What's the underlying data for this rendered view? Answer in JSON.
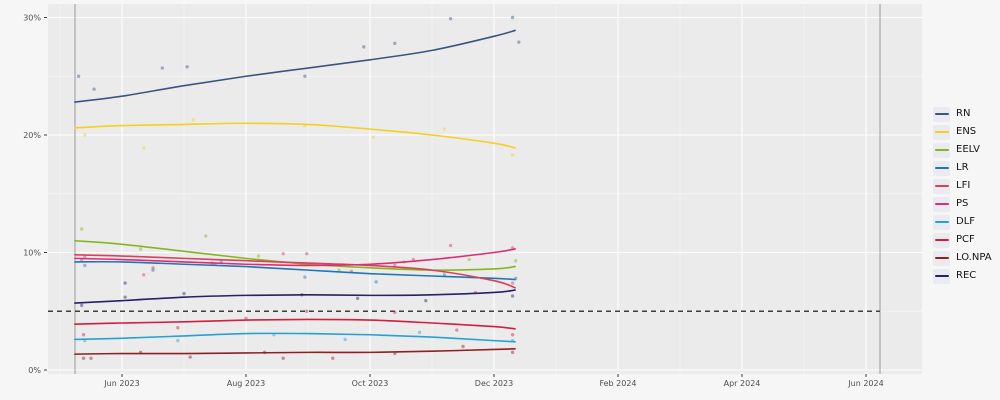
{
  "chart_data": {
    "type": "line",
    "title": "",
    "description": "Polling trends with individual poll results (scatter) per party, June 2023 - June 2024",
    "grid": "on",
    "legend_position": "right",
    "panel_color": "#ebebeb",
    "gridline_color": "#ffffff",
    "x_axis": {
      "unit": "months from Jun 2023",
      "ticks": [
        {
          "m": 0,
          "label": "Jun 2023"
        },
        {
          "m": 2,
          "label": "Aug 2023"
        },
        {
          "m": 4,
          "label": "Oct 2023"
        },
        {
          "m": 6,
          "label": "Dec 2023"
        },
        {
          "m": 8,
          "label": "Feb 2024"
        },
        {
          "m": 10,
          "label": "Apr 2024"
        },
        {
          "m": 12,
          "label": "Jun 2024"
        }
      ],
      "minor_ticks_m": [
        -1,
        1,
        3,
        5,
        7,
        9,
        11,
        13
      ]
    },
    "y_axis": {
      "range": [
        0,
        30
      ],
      "ticks": [
        {
          "v": 0,
          "label": "0%"
        },
        {
          "v": 10,
          "label": "10%"
        },
        {
          "v": 20,
          "label": "20%"
        },
        {
          "v": 30,
          "label": "30%"
        }
      ],
      "minor_ticks_v": [
        5,
        15,
        25
      ]
    },
    "threshold_line": {
      "value": 5,
      "style": "dashed",
      "color": "#3f3f3f",
      "extends_to_m": 12.226
    },
    "reference_vlines": [
      {
        "m": -0.758,
        "color": "#9b9b9b"
      },
      {
        "m": 12.226,
        "color": "#9b9b9b"
      }
    ],
    "trend_months": [
      -0.76,
      0,
      1,
      2,
      3,
      4,
      5,
      6,
      6.34
    ],
    "series": [
      {
        "name": "RN",
        "key": "rn",
        "color": "#3a567f",
        "trend": [
          22.8,
          23.3,
          24.2,
          25.0,
          25.7,
          26.4,
          27.2,
          28.4,
          28.9
        ],
        "points": [
          [
            -0.7,
            25.0
          ],
          [
            -0.45,
            23.9
          ],
          [
            0.65,
            25.7
          ],
          [
            1.05,
            25.8
          ],
          [
            2.95,
            25.0
          ],
          [
            3.9,
            27.5
          ],
          [
            4.4,
            27.8
          ],
          [
            5.3,
            29.9
          ],
          [
            6.3,
            30.0
          ],
          [
            6.4,
            27.9
          ]
        ]
      },
      {
        "name": "ENS",
        "key": "ens",
        "color": "#f5d020",
        "trend": [
          20.6,
          20.8,
          20.9,
          21.0,
          20.9,
          20.5,
          20.0,
          19.3,
          18.9
        ],
        "points": [
          [
            -0.6,
            20.0
          ],
          [
            0.35,
            18.9
          ],
          [
            1.15,
            21.3
          ],
          [
            2.95,
            20.8
          ],
          [
            4.05,
            19.8
          ],
          [
            5.2,
            20.5
          ],
          [
            6.3,
            18.3
          ]
        ]
      },
      {
        "name": "EELV",
        "key": "eelv",
        "color": "#85b71d",
        "trend": [
          11.0,
          10.7,
          10.1,
          9.5,
          9.0,
          8.7,
          8.5,
          8.6,
          8.8
        ],
        "points": [
          [
            -0.65,
            12.0
          ],
          [
            0.3,
            10.3
          ],
          [
            1.35,
            11.4
          ],
          [
            2.2,
            9.7
          ],
          [
            3.5,
            8.5
          ],
          [
            4.55,
            9.2
          ],
          [
            5.6,
            9.4
          ],
          [
            6.35,
            9.3
          ]
        ]
      },
      {
        "name": "LR",
        "key": "lr",
        "color": "#1f77b4",
        "trend": [
          9.2,
          9.2,
          9.0,
          8.8,
          8.5,
          8.2,
          8.0,
          7.8,
          7.7
        ],
        "points": [
          [
            -0.6,
            8.9
          ],
          [
            0.5,
            8.5
          ],
          [
            1.6,
            9.2
          ],
          [
            2.95,
            7.9
          ],
          [
            4.1,
            7.5
          ],
          [
            5.2,
            8.1
          ],
          [
            6.35,
            7.8
          ]
        ]
      },
      {
        "name": "LFI",
        "key": "lfi",
        "color": "#d8415a",
        "trend": [
          9.8,
          9.7,
          9.5,
          9.3,
          9.1,
          8.9,
          8.5,
          7.6,
          7.0
        ],
        "points": [
          [
            -0.6,
            9.6
          ],
          [
            0.35,
            8.1
          ],
          [
            1.5,
            9.0
          ],
          [
            2.6,
            9.9
          ],
          [
            3.7,
            8.4
          ],
          [
            4.7,
            9.4
          ],
          [
            5.7,
            6.6
          ],
          [
            6.3,
            7.4
          ]
        ]
      },
      {
        "name": "PS",
        "key": "ps",
        "color": "#de2d77",
        "trend": [
          9.5,
          9.4,
          9.2,
          9.0,
          8.9,
          9.0,
          9.4,
          10.0,
          10.3
        ],
        "points": [
          [
            -0.65,
            9.4
          ],
          [
            0.5,
            8.7
          ],
          [
            1.45,
            9.1
          ],
          [
            2.98,
            9.9
          ],
          [
            4.4,
            8.9
          ],
          [
            5.3,
            10.6
          ],
          [
            6.3,
            10.4
          ]
        ]
      },
      {
        "name": "DLF",
        "key": "dlf",
        "color": "#27a0d6",
        "trend": [
          2.6,
          2.7,
          2.9,
          3.1,
          3.1,
          3.0,
          2.8,
          2.5,
          2.4
        ],
        "points": [
          [
            -0.6,
            2.5
          ],
          [
            0.9,
            2.5
          ],
          [
            2.45,
            3.0
          ],
          [
            3.6,
            2.6
          ],
          [
            4.8,
            3.2
          ],
          [
            6.3,
            2.5
          ]
        ]
      },
      {
        "name": "PCF",
        "key": "pcf",
        "color": "#d31e3d",
        "trend": [
          3.9,
          4.0,
          4.1,
          4.25,
          4.3,
          4.25,
          4.0,
          3.7,
          3.5
        ],
        "points": [
          [
            -0.62,
            3.0
          ],
          [
            0.9,
            3.6
          ],
          [
            2.0,
            4.4
          ],
          [
            2.98,
            5.0
          ],
          [
            4.4,
            4.9
          ],
          [
            5.4,
            3.4
          ],
          [
            6.3,
            3.0
          ]
        ]
      },
      {
        "name": "LO.NPA",
        "key": "lo-npa",
        "color": "#8f2025",
        "trend": [
          1.35,
          1.4,
          1.4,
          1.45,
          1.5,
          1.5,
          1.6,
          1.75,
          1.8
        ],
        "points": [
          [
            -0.62,
            1.0
          ],
          [
            -0.5,
            1.0
          ],
          [
            0.3,
            1.5
          ],
          [
            1.1,
            1.1
          ],
          [
            2.3,
            1.5
          ],
          [
            2.6,
            1.0
          ],
          [
            3.4,
            1.0
          ],
          [
            4.4,
            1.4
          ],
          [
            5.5,
            2.0
          ],
          [
            6.3,
            1.5
          ]
        ]
      },
      {
        "name": "REC",
        "key": "rec",
        "color": "#262168",
        "trend": [
          5.7,
          5.9,
          6.2,
          6.35,
          6.4,
          6.35,
          6.4,
          6.6,
          6.8
        ],
        "points": [
          [
            -0.65,
            5.5
          ],
          [
            0.05,
            6.2
          ],
          [
            0.05,
            7.4
          ],
          [
            1.0,
            6.5
          ],
          [
            2.9,
            6.4
          ],
          [
            3.8,
            6.1
          ],
          [
            4.9,
            5.9
          ],
          [
            6.3,
            6.3
          ]
        ]
      }
    ]
  }
}
